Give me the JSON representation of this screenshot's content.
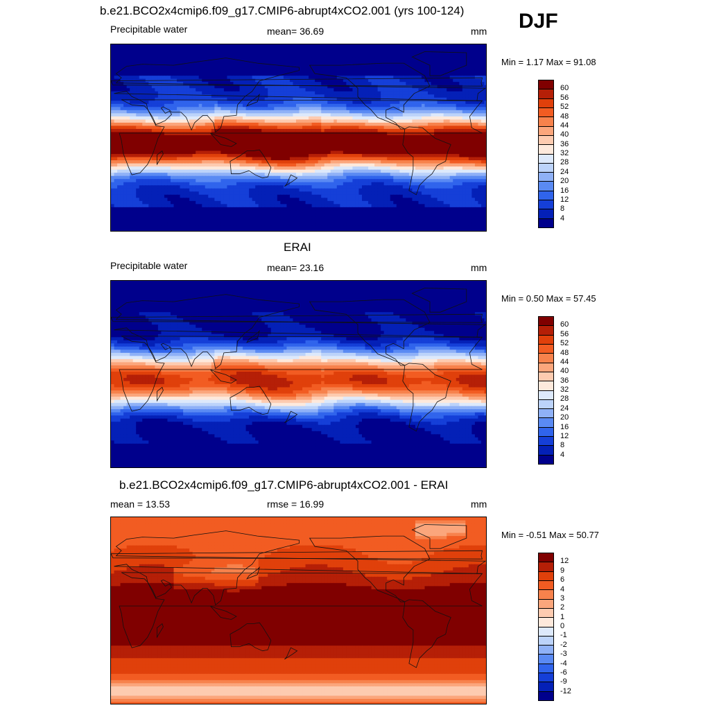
{
  "header": {
    "title1": "b.e21.BCO2x4cmip6.f09_g17.CMIP6-abrupt4xCO2.001 (yrs 100-124)",
    "season": "DJF"
  },
  "panels": [
    {
      "title": "",
      "left_label": "Precipitable water",
      "center_label": "mean=  36.69",
      "units": "mm",
      "minmax": "Min =   1.17 Max =  91.08",
      "colorbar": {
        "labels": [
          "60",
          "56",
          "52",
          "48",
          "44",
          "40",
          "36",
          "32",
          "28",
          "24",
          "20",
          "16",
          "12",
          "8",
          "4"
        ],
        "colors": [
          "#800000",
          "#b51f07",
          "#e0400b",
          "#f25c22",
          "#f7824c",
          "#fba67c",
          "#fdcbb0",
          "#fde9dc",
          "#dde9fb",
          "#bcd3fa",
          "#8fb1f7",
          "#5a8af3",
          "#3064ec",
          "#153fd8",
          "#0420b7",
          "#00008c"
        ]
      },
      "field": "model"
    },
    {
      "title": "ERAI",
      "left_label": "Precipitable water",
      "center_label": "mean=  23.16",
      "units": "mm",
      "minmax": "Min =   0.50 Max =  57.45",
      "colorbar": {
        "labels": [
          "60",
          "56",
          "52",
          "48",
          "44",
          "40",
          "36",
          "32",
          "28",
          "24",
          "20",
          "16",
          "12",
          "8",
          "4"
        ],
        "colors": [
          "#800000",
          "#b51f07",
          "#e0400b",
          "#f25c22",
          "#f7824c",
          "#fba67c",
          "#fdcbb0",
          "#fde9dc",
          "#dde9fb",
          "#bcd3fa",
          "#8fb1f7",
          "#5a8af3",
          "#3064ec",
          "#153fd8",
          "#0420b7",
          "#00008c"
        ]
      },
      "field": "obs"
    },
    {
      "title": "b.e21.BCO2x4cmip6.f09_g17.CMIP6-abrupt4xCO2.001 - ERAI",
      "left_label": "mean =  13.53",
      "center_label": "rmse =  16.99",
      "units": "mm",
      "minmax": "Min =  -0.51 Max =  50.77",
      "colorbar": {
        "labels": [
          "12",
          "9",
          "6",
          "4",
          "3",
          "2",
          "1",
          "0",
          "-1",
          "-2",
          "-3",
          "-4",
          "-6",
          "-9",
          "-12"
        ],
        "colors": [
          "#800000",
          "#b51f07",
          "#e0400b",
          "#f25c22",
          "#f7824c",
          "#fba67c",
          "#fdcbb0",
          "#fde9dc",
          "#dde9fb",
          "#bcd3fa",
          "#8fb1f7",
          "#5a8af3",
          "#3064ec",
          "#153fd8",
          "#0420b7",
          "#00008c"
        ]
      },
      "field": "diff"
    }
  ]
}
